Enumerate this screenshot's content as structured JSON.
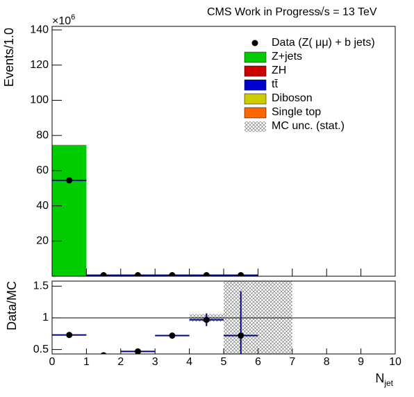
{
  "chart_data": [
    {
      "type": "stacked_histogram",
      "title": "CMS Work in Progress",
      "energy": "√s = 13 TeV",
      "ylabel": "Events/1.0",
      "y_multiplier": "×10",
      "y_multiplier_power": "6",
      "bins": [
        0,
        1,
        2,
        3,
        4,
        5,
        6,
        7,
        8,
        9,
        10
      ],
      "series": [
        {
          "name": "Z+jets",
          "color": "#00cc00",
          "values": [
            74.5,
            0.9,
            0.3,
            0.2,
            0.15,
            0.1,
            0,
            0,
            0,
            0
          ]
        },
        {
          "name": "ZH",
          "color": "#cc0000",
          "values": [
            0,
            0,
            0,
            0,
            0,
            0,
            0,
            0,
            0,
            0
          ]
        },
        {
          "name": "tt̄",
          "color": "#0000cc",
          "values": [
            0.1,
            0.05,
            0.02,
            0.01,
            0,
            0,
            0,
            0,
            0,
            0
          ]
        },
        {
          "name": "Diboson",
          "color": "#cccc00",
          "values": [
            0.05,
            0.01,
            0,
            0,
            0,
            0,
            0,
            0,
            0,
            0
          ]
        },
        {
          "name": "Single top",
          "color": "#ff6600",
          "values": [
            0.02,
            0.01,
            0,
            0,
            0,
            0,
            0,
            0,
            0,
            0
          ]
        }
      ],
      "data": {
        "name": "Data (Z( μμ) + b jets)",
        "color": "#000000",
        "x": [
          0.5,
          1.5,
          2.5,
          3.5,
          4.5,
          5.5
        ],
        "values": [
          54.5,
          0.4,
          0.15,
          0.15,
          0.15,
          0.1
        ]
      },
      "xlim": [
        0,
        10
      ],
      "xticks": [
        0,
        1,
        2,
        3,
        4,
        5,
        6,
        7,
        8,
        9,
        10
      ],
      "ylim": [
        0,
        142
      ],
      "yticks": [
        20,
        40,
        60,
        80,
        100,
        120,
        140
      ]
    },
    {
      "type": "ratio",
      "ylabel": "Data/MC",
      "xlabel": "N",
      "xlabel_sub": "jet",
      "x": [
        0.5,
        1.5,
        2.5,
        3.5,
        4.5,
        5.5
      ],
      "values": [
        0.73,
        0.41,
        0.47,
        0.72,
        0.97,
        0.72
      ],
      "errors": [
        0.01,
        0.01,
        0.02,
        0.02,
        0.1,
        0.7
      ],
      "band": {
        "name": "MC unc. (stat.)",
        "bins": [
          0,
          1,
          2,
          3,
          4,
          5,
          6,
          7,
          8,
          9,
          10
        ],
        "low": [
          null,
          null,
          0.995,
          0.995,
          0.94,
          0.3,
          0.3,
          null,
          null,
          null
        ],
        "high": [
          null,
          null,
          1.005,
          1.005,
          1.06,
          1.7,
          1.7,
          null,
          null,
          null
        ]
      },
      "hline": 1,
      "xlim": [
        0,
        10
      ],
      "xticks": [
        0,
        1,
        2,
        3,
        4,
        5,
        6,
        7,
        8,
        9,
        10
      ],
      "ylim": [
        0.43,
        1.58
      ],
      "yticks": [
        0.5,
        1,
        1.5
      ]
    }
  ]
}
